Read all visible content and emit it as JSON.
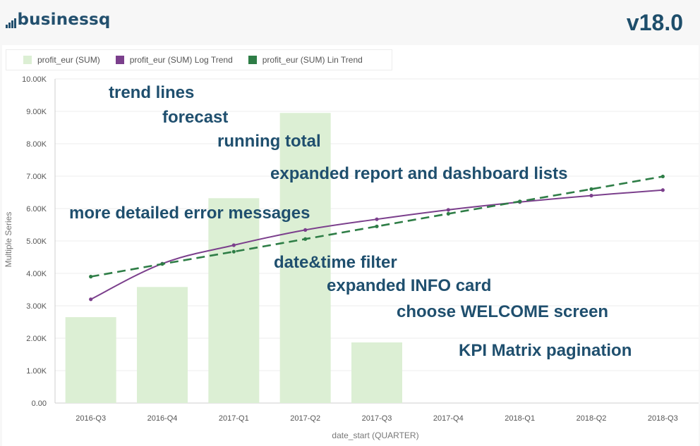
{
  "app": {
    "logo_text": "businessq",
    "version": "v18.0"
  },
  "legend": [
    {
      "label": "profit_eur (SUM)",
      "color": "#dcefd4"
    },
    {
      "label": "profit_eur (SUM) Log Trend",
      "color": "#7b3f8c"
    },
    {
      "label": "profit_eur (SUM) Lin Trend",
      "color": "#2e7d46"
    }
  ],
  "annotations": [
    "trend lines",
    "forecast",
    "running total",
    "expanded report and dashboard  lists",
    "more detailed error messages",
    "date&time filter",
    "expanded INFO card",
    "choose WELCOME screen",
    "KPI Matrix pagination"
  ],
  "chart_data": {
    "type": "bar",
    "categories": [
      "2016-Q3",
      "2016-Q4",
      "2017-Q1",
      "2017-Q2",
      "2017-Q3",
      "2017-Q4",
      "2018-Q1",
      "2018-Q2",
      "2018-Q3"
    ],
    "xlabel": "date_start (QUARTER)",
    "ylabel": "Multiple Series",
    "ylim": [
      0,
      10000
    ],
    "yticks": [
      "0.00",
      "1.00K",
      "2.00K",
      "3.00K",
      "4.00K",
      "5.00K",
      "6.00K",
      "7.00K",
      "8.00K",
      "9.00K",
      "10.00K"
    ],
    "grid": true,
    "legend_position": "top-left",
    "series": [
      {
        "name": "profit_eur (SUM)",
        "type": "bar",
        "color": "#dcefd4",
        "values": [
          2650,
          3580,
          6320,
          8950,
          1870,
          null,
          null,
          null,
          null
        ]
      },
      {
        "name": "profit_eur (SUM) Log Trend",
        "type": "line",
        "color": "#7b3f8c",
        "values": [
          3200,
          4300,
          4870,
          5340,
          5670,
          5960,
          6200,
          6400,
          6570
        ]
      },
      {
        "name": "profit_eur (SUM) Lin Trend",
        "type": "dashed-line",
        "color": "#2e7d46",
        "values": [
          3900,
          4290,
          4670,
          5060,
          5450,
          5840,
          6220,
          6600,
          6990
        ]
      }
    ]
  }
}
